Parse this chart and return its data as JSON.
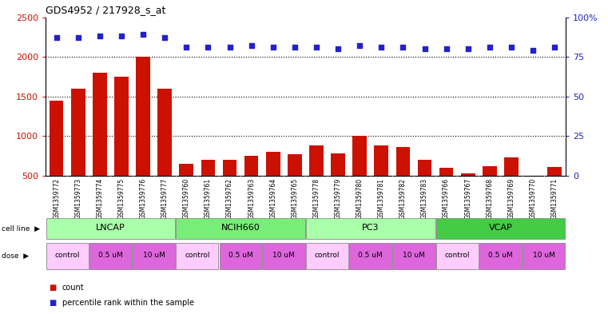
{
  "title": "GDS4952 / 217928_s_at",
  "samples": [
    "GSM1359772",
    "GSM1359773",
    "GSM1359774",
    "GSM1359775",
    "GSM1359776",
    "GSM1359777",
    "GSM1359760",
    "GSM1359761",
    "GSM1359762",
    "GSM1359763",
    "GSM1359764",
    "GSM1359765",
    "GSM1359778",
    "GSM1359779",
    "GSM1359780",
    "GSM1359781",
    "GSM1359782",
    "GSM1359783",
    "GSM1359766",
    "GSM1359767",
    "GSM1359768",
    "GSM1359769",
    "GSM1359770",
    "GSM1359771"
  ],
  "counts": [
    1450,
    1600,
    1800,
    1750,
    2000,
    1600,
    650,
    700,
    700,
    750,
    805,
    775,
    880,
    780,
    1000,
    880,
    860,
    700,
    600,
    530,
    620,
    730,
    500,
    615
  ],
  "percentiles": [
    87,
    87,
    88,
    88,
    89,
    87,
    81,
    81,
    81,
    82,
    81,
    81,
    81,
    80,
    82,
    81,
    81,
    80,
    80,
    80,
    81,
    81,
    79,
    81
  ],
  "cell_lines": [
    {
      "name": "LNCAP",
      "start": 0,
      "end": 6,
      "color": "#aaffaa"
    },
    {
      "name": "NCIH660",
      "start": 6,
      "end": 12,
      "color": "#77ee77"
    },
    {
      "name": "PC3",
      "start": 12,
      "end": 18,
      "color": "#aaffaa"
    },
    {
      "name": "VCAP",
      "start": 18,
      "end": 24,
      "color": "#44cc44"
    }
  ],
  "doses": [
    {
      "name": "control",
      "start": 0,
      "end": 2,
      "color": "#ffccff"
    },
    {
      "name": "0.5 uM",
      "start": 2,
      "end": 4,
      "color": "#dd66dd"
    },
    {
      "name": "10 uM",
      "start": 4,
      "end": 6,
      "color": "#dd66dd"
    },
    {
      "name": "control",
      "start": 6,
      "end": 8,
      "color": "#ffccff"
    },
    {
      "name": "0.5 uM",
      "start": 8,
      "end": 10,
      "color": "#dd66dd"
    },
    {
      "name": "10 uM",
      "start": 10,
      "end": 12,
      "color": "#dd66dd"
    },
    {
      "name": "control",
      "start": 12,
      "end": 14,
      "color": "#ffccff"
    },
    {
      "name": "0.5 uM",
      "start": 14,
      "end": 16,
      "color": "#dd66dd"
    },
    {
      "name": "10 uM",
      "start": 16,
      "end": 18,
      "color": "#dd66dd"
    },
    {
      "name": "control",
      "start": 18,
      "end": 20,
      "color": "#ffccff"
    },
    {
      "name": "0.5 uM",
      "start": 20,
      "end": 22,
      "color": "#dd66dd"
    },
    {
      "name": "10 uM",
      "start": 22,
      "end": 24,
      "color": "#dd66dd"
    }
  ],
  "bar_color": "#cc1100",
  "dot_color": "#2222cc",
  "ylim_left": [
    500,
    2500
  ],
  "ylim_right": [
    0,
    100
  ],
  "yticks_left": [
    500,
    1000,
    1500,
    2000,
    2500
  ],
  "yticks_right": [
    0,
    25,
    50,
    75,
    100
  ],
  "grid_lines": [
    1000,
    1500,
    2000
  ],
  "n_samples": 24,
  "background_color": "#ffffff",
  "xtick_bg_color": "#cccccc",
  "plot_bg_color": "#ffffff"
}
